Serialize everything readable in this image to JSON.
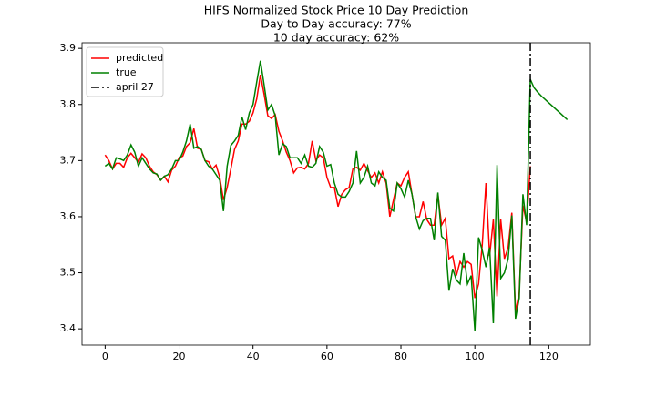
{
  "chart_data": {
    "type": "line",
    "title": [
      "HIFS Normalized Stock Price 10 Day Prediction",
      "Day to Day accuracy: 77%",
      "10 day accuracy: 62%"
    ],
    "x": [
      0,
      1,
      2,
      3,
      4,
      5,
      6,
      7,
      8,
      9,
      10,
      11,
      12,
      13,
      14,
      15,
      16,
      17,
      18,
      19,
      20,
      21,
      22,
      23,
      24,
      25,
      26,
      27,
      28,
      29,
      30,
      31,
      32,
      33,
      34,
      35,
      36,
      37,
      38,
      39,
      40,
      41,
      42,
      43,
      44,
      45,
      46,
      47,
      48,
      49,
      50,
      51,
      52,
      53,
      54,
      55,
      56,
      57,
      58,
      59,
      60,
      61,
      62,
      63,
      64,
      65,
      66,
      67,
      68,
      69,
      70,
      71,
      72,
      73,
      74,
      75,
      76,
      77,
      78,
      79,
      80,
      81,
      82,
      83,
      84,
      85,
      86,
      87,
      88,
      89,
      90,
      91,
      92,
      93,
      94,
      95,
      96,
      97,
      98,
      99,
      100,
      101,
      102,
      103,
      104,
      105,
      106,
      107,
      108,
      109,
      110,
      111,
      112,
      113,
      114,
      115,
      116,
      117,
      118,
      119,
      120,
      121,
      122,
      123,
      124,
      125
    ],
    "series": [
      {
        "name": "predicted",
        "color": "#ff0000",
        "values": [
          3.71,
          3.7,
          3.685,
          3.695,
          3.695,
          3.688,
          3.705,
          3.713,
          3.705,
          3.697,
          3.712,
          3.705,
          3.69,
          3.68,
          3.675,
          3.665,
          3.672,
          3.662,
          3.683,
          3.69,
          3.705,
          3.708,
          3.725,
          3.732,
          3.757,
          3.722,
          3.72,
          3.7,
          3.698,
          3.685,
          3.692,
          3.67,
          3.63,
          3.652,
          3.685,
          3.72,
          3.735,
          3.765,
          3.765,
          3.77,
          3.785,
          3.81,
          3.853,
          3.818,
          3.78,
          3.775,
          3.782,
          3.752,
          3.735,
          3.715,
          3.7,
          3.678,
          3.687,
          3.688,
          3.685,
          3.695,
          3.735,
          3.7,
          3.71,
          3.705,
          3.67,
          3.652,
          3.652,
          3.618,
          3.64,
          3.648,
          3.652,
          3.685,
          3.688,
          3.683,
          3.695,
          3.682,
          3.67,
          3.678,
          3.66,
          3.68,
          3.66,
          3.6,
          3.63,
          3.66,
          3.655,
          3.67,
          3.68,
          3.64,
          3.6,
          3.6,
          3.627,
          3.595,
          3.585,
          3.585,
          3.64,
          3.585,
          3.597,
          3.525,
          3.53,
          3.495,
          3.52,
          3.51,
          3.52,
          3.515,
          3.455,
          3.48,
          3.55,
          3.66,
          3.53,
          3.595,
          3.458,
          3.595,
          3.525,
          3.545,
          3.607,
          3.43,
          3.465,
          3.62,
          3.59,
          3.69,
          null,
          null,
          null,
          null,
          null,
          null,
          null,
          null,
          null,
          null
        ]
      },
      {
        "name": "true",
        "color": "#008000",
        "values": [
          3.69,
          3.695,
          3.685,
          3.705,
          3.703,
          3.7,
          3.71,
          3.728,
          3.715,
          3.69,
          3.705,
          3.695,
          3.685,
          3.678,
          3.676,
          3.665,
          3.672,
          3.675,
          3.685,
          3.7,
          3.7,
          3.715,
          3.735,
          3.765,
          3.722,
          3.725,
          3.72,
          3.7,
          3.69,
          3.685,
          3.675,
          3.665,
          3.61,
          3.69,
          3.727,
          3.735,
          3.745,
          3.778,
          3.755,
          3.785,
          3.8,
          3.84,
          3.878,
          3.835,
          3.79,
          3.8,
          3.78,
          3.71,
          3.73,
          3.725,
          3.705,
          3.705,
          3.705,
          3.695,
          3.71,
          3.69,
          3.688,
          3.695,
          3.725,
          3.715,
          3.69,
          3.693,
          3.66,
          3.64,
          3.635,
          3.635,
          3.645,
          3.66,
          3.717,
          3.66,
          3.67,
          3.69,
          3.66,
          3.655,
          3.68,
          3.67,
          3.665,
          3.615,
          3.61,
          3.66,
          3.65,
          3.635,
          3.665,
          3.64,
          3.6,
          3.578,
          3.593,
          3.597,
          3.597,
          3.558,
          3.643,
          3.565,
          3.558,
          3.468,
          3.507,
          3.487,
          3.48,
          3.535,
          3.48,
          3.495,
          3.397,
          3.563,
          3.54,
          3.51,
          3.545,
          3.41,
          3.692,
          3.49,
          3.5,
          3.525,
          3.602,
          3.418,
          3.455,
          3.64,
          3.585,
          3.845,
          3.83,
          3.822,
          3.815,
          3.809,
          3.803,
          3.797,
          3.791,
          3.785,
          3.779,
          3.773
        ]
      }
    ],
    "vlines": [
      {
        "name": "april 27",
        "x": 115,
        "color": "#000000",
        "style": "dashdot"
      }
    ],
    "xlim": [
      -6.25,
      131.25
    ],
    "xticks": [
      0,
      20,
      40,
      60,
      80,
      100,
      120
    ],
    "ylim": [
      3.371,
      3.91
    ],
    "yticks": [
      3.4,
      3.5,
      3.6,
      3.7,
      3.8,
      3.9
    ],
    "grid": false,
    "legend": "upper left"
  }
}
